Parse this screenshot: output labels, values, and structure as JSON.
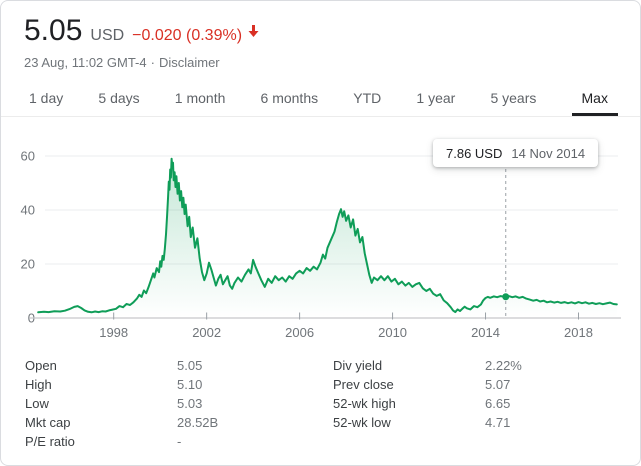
{
  "header": {
    "price": "5.05",
    "currency": "USD",
    "change": "−0.020 (0.39%)",
    "change_direction": "down",
    "change_color": "#d93025",
    "timestamp": "23 Aug, 11:02 GMT-4",
    "separator": "·",
    "disclaimer": "Disclaimer"
  },
  "tabs": [
    {
      "label": "1 day",
      "active": false
    },
    {
      "label": "5 days",
      "active": false
    },
    {
      "label": "1 month",
      "active": false
    },
    {
      "label": "6 months",
      "active": false
    },
    {
      "label": "YTD",
      "active": false
    },
    {
      "label": "1 year",
      "active": false
    },
    {
      "label": "5 years",
      "active": false
    },
    {
      "label": "Max",
      "active": true
    }
  ],
  "chart_data": {
    "type": "area",
    "title": "",
    "xlabel": "",
    "ylabel": "",
    "line_color": "#0f9d58",
    "fill_color_top": "rgba(15,157,88,0.25)",
    "fill_color_bottom": "rgba(15,157,88,0)",
    "grid": true,
    "x_range": [
      1994.7,
      2019.7
    ],
    "y_range": [
      0,
      60
    ],
    "x_ticks": [
      1998,
      2002,
      2006,
      2010,
      2014,
      2018
    ],
    "y_ticks": [
      0,
      20,
      40,
      60
    ],
    "tooltip": {
      "price": "7.86 USD",
      "date": "14 Nov 2014",
      "x": 2014.87,
      "y": 7.86
    },
    "points": [
      [
        1994.75,
        2.1
      ],
      [
        1995.0,
        2.3
      ],
      [
        1995.2,
        2.2
      ],
      [
        1995.45,
        2.5
      ],
      [
        1995.7,
        2.4
      ],
      [
        1995.9,
        2.7
      ],
      [
        1996.1,
        3.3
      ],
      [
        1996.3,
        4.1
      ],
      [
        1996.45,
        4.4
      ],
      [
        1996.6,
        3.7
      ],
      [
        1996.75,
        2.8
      ],
      [
        1996.9,
        2.3
      ],
      [
        1997.05,
        2.1
      ],
      [
        1997.2,
        2.4
      ],
      [
        1997.35,
        2.2
      ],
      [
        1997.5,
        2.5
      ],
      [
        1997.65,
        2.4
      ],
      [
        1997.8,
        2.8
      ],
      [
        1997.95,
        3.1
      ],
      [
        1998.1,
        3.4
      ],
      [
        1998.25,
        4.4
      ],
      [
        1998.4,
        4.0
      ],
      [
        1998.55,
        5.2
      ],
      [
        1998.7,
        4.8
      ],
      [
        1998.85,
        5.8
      ],
      [
        1999.0,
        7.2
      ],
      [
        1999.1,
        8.6
      ],
      [
        1999.2,
        7.8
      ],
      [
        1999.3,
        10.2
      ],
      [
        1999.4,
        9.2
      ],
      [
        1999.5,
        11.5
      ],
      [
        1999.6,
        14.0
      ],
      [
        1999.7,
        16.5
      ],
      [
        1999.75,
        15.0
      ],
      [
        1999.85,
        18.5
      ],
      [
        1999.95,
        17.0
      ],
      [
        2000.0,
        21.0
      ],
      [
        2000.05,
        19.0
      ],
      [
        2000.1,
        23.0
      ],
      [
        2000.15,
        21.5
      ],
      [
        2000.2,
        25.5
      ],
      [
        2000.25,
        31.0
      ],
      [
        2000.3,
        38.0
      ],
      [
        2000.34,
        45.0
      ],
      [
        2000.37,
        50.5
      ],
      [
        2000.4,
        47.5
      ],
      [
        2000.43,
        55.0
      ],
      [
        2000.46,
        52.0
      ],
      [
        2000.49,
        59.0
      ],
      [
        2000.52,
        55.5
      ],
      [
        2000.55,
        57.5
      ],
      [
        2000.58,
        51.0
      ],
      [
        2000.62,
        54.0
      ],
      [
        2000.66,
        48.5
      ],
      [
        2000.7,
        52.5
      ],
      [
        2000.75,
        46.0
      ],
      [
        2000.8,
        50.0
      ],
      [
        2000.85,
        43.5
      ],
      [
        2000.9,
        47.0
      ],
      [
        2000.95,
        41.0
      ],
      [
        2001.0,
        44.5
      ],
      [
        2001.05,
        38.5
      ],
      [
        2001.1,
        42.0
      ],
      [
        2001.18,
        34.0
      ],
      [
        2001.25,
        37.5
      ],
      [
        2001.32,
        30.0
      ],
      [
        2001.4,
        33.5
      ],
      [
        2001.5,
        26.0
      ],
      [
        2001.6,
        29.5
      ],
      [
        2001.7,
        22.0
      ],
      [
        2001.8,
        17.0
      ],
      [
        2001.9,
        14.0
      ],
      [
        2002.0,
        16.5
      ],
      [
        2002.1,
        20.5
      ],
      [
        2002.2,
        18.0
      ],
      [
        2002.3,
        15.0
      ],
      [
        2002.4,
        12.0
      ],
      [
        2002.5,
        14.5
      ],
      [
        2002.6,
        16.0
      ],
      [
        2002.7,
        12.5
      ],
      [
        2002.8,
        14.0
      ],
      [
        2002.9,
        15.5
      ],
      [
        2003.0,
        12.0
      ],
      [
        2003.1,
        10.8
      ],
      [
        2003.2,
        13.0
      ],
      [
        2003.35,
        15.0
      ],
      [
        2003.5,
        13.5
      ],
      [
        2003.65,
        16.0
      ],
      [
        2003.8,
        18.0
      ],
      [
        2003.9,
        16.5
      ],
      [
        2004.0,
        21.5
      ],
      [
        2004.1,
        19.0
      ],
      [
        2004.2,
        17.0
      ],
      [
        2004.35,
        14.0
      ],
      [
        2004.5,
        11.5
      ],
      [
        2004.65,
        14.5
      ],
      [
        2004.8,
        13.0
      ],
      [
        2004.95,
        15.5
      ],
      [
        2005.1,
        14.0
      ],
      [
        2005.25,
        15.0
      ],
      [
        2005.4,
        13.5
      ],
      [
        2005.55,
        15.5
      ],
      [
        2005.7,
        14.5
      ],
      [
        2005.85,
        16.5
      ],
      [
        2006.0,
        17.5
      ],
      [
        2006.15,
        16.5
      ],
      [
        2006.3,
        18.5
      ],
      [
        2006.45,
        17.5
      ],
      [
        2006.6,
        19.0
      ],
      [
        2006.75,
        18.0
      ],
      [
        2006.9,
        20.5
      ],
      [
        2007.0,
        23.5
      ],
      [
        2007.1,
        22.0
      ],
      [
        2007.2,
        26.0
      ],
      [
        2007.35,
        29.0
      ],
      [
        2007.5,
        32.0
      ],
      [
        2007.6,
        35.5
      ],
      [
        2007.7,
        38.5
      ],
      [
        2007.78,
        40.3
      ],
      [
        2007.85,
        37.5
      ],
      [
        2007.92,
        39.5
      ],
      [
        2008.0,
        36.0
      ],
      [
        2008.1,
        38.0
      ],
      [
        2008.2,
        33.5
      ],
      [
        2008.3,
        36.5
      ],
      [
        2008.4,
        30.5
      ],
      [
        2008.5,
        33.0
      ],
      [
        2008.6,
        28.0
      ],
      [
        2008.7,
        30.0
      ],
      [
        2008.8,
        24.0
      ],
      [
        2008.9,
        20.0
      ],
      [
        2009.0,
        16.0
      ],
      [
        2009.1,
        13.0
      ],
      [
        2009.2,
        15.0
      ],
      [
        2009.35,
        14.0
      ],
      [
        2009.5,
        15.5
      ],
      [
        2009.65,
        14.0
      ],
      [
        2009.8,
        15.5
      ],
      [
        2009.95,
        13.5
      ],
      [
        2010.1,
        14.5
      ],
      [
        2010.25,
        12.5
      ],
      [
        2010.4,
        13.5
      ],
      [
        2010.55,
        12.0
      ],
      [
        2010.7,
        13.0
      ],
      [
        2010.85,
        11.5
      ],
      [
        2011.0,
        12.5
      ],
      [
        2011.15,
        13.0
      ],
      [
        2011.3,
        11.0
      ],
      [
        2011.45,
        10.0
      ],
      [
        2011.6,
        10.8
      ],
      [
        2011.75,
        9.0
      ],
      [
        2011.9,
        8.2
      ],
      [
        2012.05,
        8.8
      ],
      [
        2012.2,
        6.5
      ],
      [
        2012.35,
        5.5
      ],
      [
        2012.5,
        4.0
      ],
      [
        2012.6,
        2.8
      ],
      [
        2012.7,
        2.2
      ],
      [
        2012.8,
        3.2
      ],
      [
        2012.9,
        2.6
      ],
      [
        2013.0,
        3.4
      ],
      [
        2013.1,
        4.2
      ],
      [
        2013.2,
        3.6
      ],
      [
        2013.35,
        3.2
      ],
      [
        2013.5,
        4.4
      ],
      [
        2013.65,
        4.0
      ],
      [
        2013.8,
        5.0
      ],
      [
        2013.9,
        6.5
      ],
      [
        2014.0,
        7.4
      ],
      [
        2014.1,
        7.8
      ],
      [
        2014.2,
        7.5
      ],
      [
        2014.35,
        8.0
      ],
      [
        2014.5,
        7.7
      ],
      [
        2014.65,
        8.1
      ],
      [
        2014.8,
        7.9
      ],
      [
        2014.87,
        7.86
      ],
      [
        2015.0,
        8.1
      ],
      [
        2015.15,
        7.7
      ],
      [
        2015.3,
        8.0
      ],
      [
        2015.45,
        7.5
      ],
      [
        2015.6,
        7.8
      ],
      [
        2015.75,
        7.2
      ],
      [
        2015.9,
        6.8
      ],
      [
        2016.05,
        6.4
      ],
      [
        2016.2,
        6.7
      ],
      [
        2016.35,
        6.1
      ],
      [
        2016.5,
        6.4
      ],
      [
        2016.65,
        5.8
      ],
      [
        2016.8,
        6.1
      ],
      [
        2016.95,
        5.7
      ],
      [
        2017.1,
        6.0
      ],
      [
        2017.25,
        5.6
      ],
      [
        2017.4,
        5.9
      ],
      [
        2017.55,
        5.5
      ],
      [
        2017.7,
        5.8
      ],
      [
        2017.85,
        5.4
      ],
      [
        2018.0,
        5.9
      ],
      [
        2018.15,
        5.5
      ],
      [
        2018.3,
        5.8
      ],
      [
        2018.45,
        5.3
      ],
      [
        2018.6,
        5.6
      ],
      [
        2018.75,
        5.2
      ],
      [
        2018.9,
        5.5
      ],
      [
        2019.05,
        5.1
      ],
      [
        2019.2,
        5.4
      ],
      [
        2019.35,
        5.7
      ],
      [
        2019.5,
        5.2
      ],
      [
        2019.65,
        5.05
      ]
    ]
  },
  "stats": {
    "left": [
      {
        "label": "Open",
        "value": "5.05"
      },
      {
        "label": "High",
        "value": "5.10"
      },
      {
        "label": "Low",
        "value": "5.03"
      },
      {
        "label": "Mkt cap",
        "value": "28.52B"
      },
      {
        "label": "P/E ratio",
        "value": "-"
      }
    ],
    "right": [
      {
        "label": "Div yield",
        "value": "2.22%"
      },
      {
        "label": "Prev close",
        "value": "5.07"
      },
      {
        "label": "52-wk high",
        "value": "6.65"
      },
      {
        "label": "52-wk low",
        "value": "4.71"
      }
    ]
  }
}
